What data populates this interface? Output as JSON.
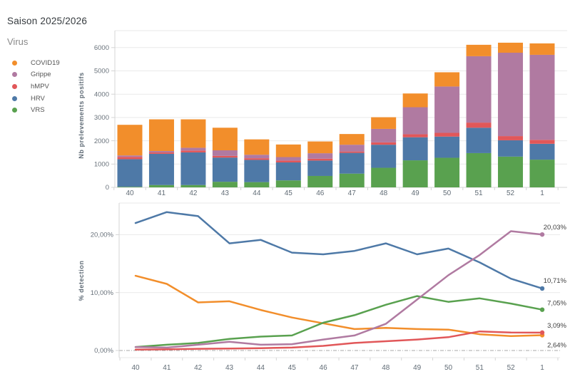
{
  "header": {
    "title": "Saison 2025/2026"
  },
  "legend": {
    "title": "Virus",
    "items": [
      {
        "label": "COVID19",
        "color": "#f28e2b"
      },
      {
        "label": "Grippe",
        "color": "#b07aa1"
      },
      {
        "label": "hMPV",
        "color": "#e15759"
      },
      {
        "label": "HRV",
        "color": "#4e79a7"
      },
      {
        "label": "VRS",
        "color": "#59a14f"
      }
    ]
  },
  "chart_data": [
    {
      "type": "bar",
      "stacked": true,
      "title": "",
      "xlabel": "",
      "ylabel": "Nb prelevements positifs",
      "categories": [
        "40",
        "41",
        "42",
        "43",
        "44",
        "45",
        "46",
        "47",
        "48",
        "49",
        "50",
        "51",
        "52",
        "1"
      ],
      "yticks": [
        0,
        1000,
        2000,
        3000,
        4000,
        5000,
        6000
      ],
      "ylim": [
        0,
        6730
      ],
      "grid": true,
      "series": [
        {
          "name": "VRS",
          "color": "#59a14f",
          "values": [
            25,
            100,
            100,
            240,
            225,
            300,
            490,
            590,
            840,
            1160,
            1270,
            1470,
            1320,
            1190
          ]
        },
        {
          "name": "HRV",
          "color": "#4e79a7",
          "values": [
            1185,
            1340,
            1400,
            1040,
            955,
            770,
            660,
            890,
            990,
            990,
            910,
            1090,
            700,
            680
          ]
        },
        {
          "name": "hMPV",
          "color": "#e15759",
          "values": [
            100,
            60,
            80,
            70,
            70,
            80,
            80,
            60,
            100,
            130,
            160,
            220,
            180,
            170
          ]
        },
        {
          "name": "Grippe",
          "color": "#b07aa1",
          "values": [
            60,
            60,
            120,
            240,
            150,
            150,
            235,
            290,
            580,
            1160,
            1990,
            2850,
            3580,
            3650
          ]
        },
        {
          "name": "COVID19",
          "color": "#f28e2b",
          "values": [
            1315,
            1360,
            1220,
            970,
            660,
            540,
            505,
            460,
            500,
            590,
            610,
            490,
            430,
            490
          ]
        }
      ]
    },
    {
      "type": "line",
      "title": "",
      "xlabel": "",
      "ylabel": "% detection",
      "categories": [
        "40",
        "41",
        "42",
        "43",
        "44",
        "45",
        "46",
        "47",
        "48",
        "49",
        "50",
        "51",
        "52",
        "1"
      ],
      "ytick_labels": [
        "0,00%",
        "10,00%",
        "20,00%"
      ],
      "ytick_values": [
        0,
        10,
        20
      ],
      "ylim": [
        -1.5,
        25.8
      ],
      "grid": true,
      "zero_line_dashed": true,
      "series": [
        {
          "name": "HRV",
          "color": "#4e79a7",
          "end_label": "10,71%",
          "values": [
            22.0,
            23.9,
            23.2,
            18.5,
            19.1,
            16.9,
            16.6,
            17.2,
            18.5,
            16.6,
            17.6,
            15.2,
            12.4,
            10.71
          ]
        },
        {
          "name": "COVID19",
          "color": "#f28e2b",
          "end_label": "2,64%",
          "values": [
            12.9,
            11.5,
            8.3,
            8.5,
            7.0,
            5.7,
            4.7,
            3.7,
            3.9,
            3.7,
            3.6,
            2.8,
            2.5,
            2.64
          ]
        },
        {
          "name": "VRS",
          "color": "#59a14f",
          "end_label": "7,05%",
          "values": [
            0.6,
            1.0,
            1.3,
            2.0,
            2.4,
            2.6,
            4.8,
            6.1,
            7.9,
            9.4,
            8.4,
            9.0,
            8.1,
            7.05
          ]
        },
        {
          "name": "Grippe",
          "color": "#b07aa1",
          "end_label": "20,03%",
          "values": [
            0.6,
            0.5,
            1.0,
            1.5,
            1.0,
            1.1,
            1.9,
            2.6,
            4.6,
            8.8,
            13.0,
            16.5,
            20.6,
            20.03
          ]
        },
        {
          "name": "hMPV",
          "color": "#e15759",
          "end_label": "3,09%",
          "values": [
            0.15,
            0.2,
            0.3,
            0.35,
            0.4,
            0.5,
            0.8,
            1.3,
            1.6,
            1.9,
            2.3,
            3.3,
            3.1,
            3.09
          ]
        }
      ]
    }
  ]
}
